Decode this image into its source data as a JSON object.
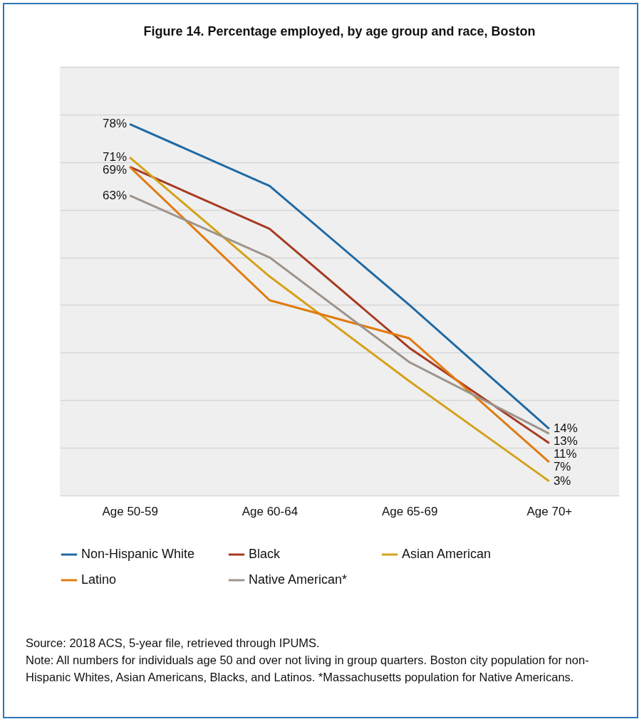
{
  "chart_data": {
    "type": "line",
    "title": "Figure 14. Percentage employed, by age group and race, Boston",
    "categories": [
      "Age 50-59",
      "Age 60-64",
      "Age 65-69",
      "Age 70+"
    ],
    "series": [
      {
        "name": "Non-Hispanic White",
        "color": "#1f6aa5",
        "values": [
          78,
          65,
          40,
          14
        ],
        "value_labels": [
          "78%",
          null,
          null,
          "14%"
        ]
      },
      {
        "name": "Black",
        "color": "#a63a22",
        "values": [
          69,
          56,
          31,
          11
        ],
        "value_labels": [
          "69%",
          null,
          null,
          "11%"
        ]
      },
      {
        "name": "Asian American",
        "color": "#d4a21a",
        "values": [
          71,
          46,
          24,
          3
        ],
        "value_labels": [
          "71%",
          null,
          null,
          "3%"
        ]
      },
      {
        "name": "Latino",
        "color": "#e07b10",
        "values": [
          69,
          41,
          33,
          7
        ],
        "value_labels": [
          null,
          null,
          null,
          "7%"
        ]
      },
      {
        "name": "Native American*",
        "color": "#9e948b",
        "values": [
          63,
          50,
          28,
          13
        ],
        "value_labels": [
          "63%",
          null,
          null,
          "13%"
        ]
      }
    ],
    "ylim": [
      0,
      90
    ],
    "yticks": [
      {
        "value": 0,
        "label": null
      },
      {
        "value": 10,
        "label": null
      },
      {
        "value": 20,
        "label": null
      },
      {
        "value": 30,
        "label": null
      },
      {
        "value": 40,
        "label": null
      },
      {
        "value": 50,
        "label": null
      },
      {
        "value": 60,
        "label": null
      },
      {
        "value": 70,
        "label": null
      },
      {
        "value": 80,
        "label": null
      },
      {
        "value": 90,
        "label": null
      }
    ],
    "tick_labels": "x",
    "grid": "y",
    "legend": "bottom",
    "marker": "none",
    "line_style": "solid",
    "annotations": [
      "Source: 2018 ACS, 5-year file, retrieved through IPUMS.",
      "Note: All numbers for individuals age 50 and over not living in group quarters. Boston city population for non-Hispanic Whites, Asian Americans, Blacks, and Latinos. *Massachusetts population for Native Americans."
    ]
  }
}
